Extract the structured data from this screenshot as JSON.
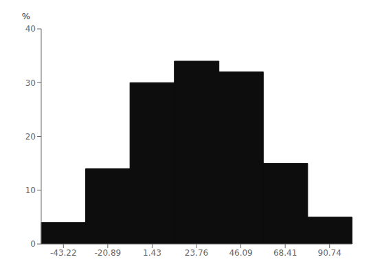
{
  "chart_data": {
    "type": "bar",
    "categories": [
      "-43.22",
      "-20.89",
      "1.43",
      "23.76",
      "46.09",
      "68.41",
      "90.74"
    ],
    "values": [
      4,
      14,
      30,
      34,
      32,
      15,
      5
    ],
    "color": "#0d0d0d",
    "ylabel": "%",
    "ylim": [
      0,
      40
    ],
    "yticks": [
      0,
      10,
      20,
      30,
      40
    ]
  }
}
